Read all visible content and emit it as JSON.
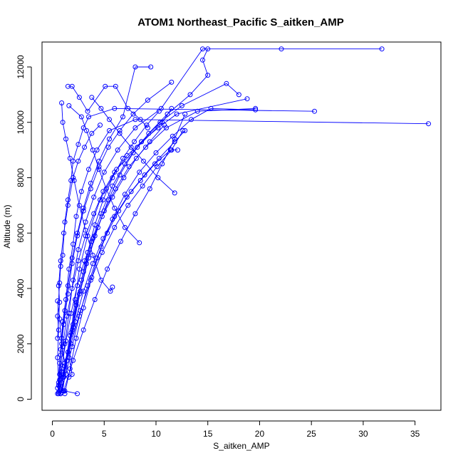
{
  "chart_data": {
    "type": "line",
    "title": "ATOM1 Northeast_Pacific S_aitken_AMP",
    "xlabel": "S_aitken_AMP",
    "ylabel": "Altitude (m)",
    "xlim": [
      -1,
      37.5
    ],
    "ylim": [
      -400,
      12900
    ],
    "x_ticks": [
      0,
      5,
      10,
      15,
      20,
      25,
      30,
      35
    ],
    "y_ticks": [
      0,
      2000,
      4000,
      6000,
      8000,
      10000,
      12000
    ],
    "x_tick_labels": [
      "0",
      "5",
      "10",
      "15",
      "20",
      "25",
      "30",
      "35"
    ],
    "y_tick_labels": [
      "0",
      "2000",
      "4000",
      "6000",
      "8000",
      "10000",
      "12000"
    ],
    "grid": false,
    "legend": "none",
    "series_color": "#0000ff",
    "marker": "open-circle",
    "profiles": [
      [
        [
          0.5,
          200
        ],
        [
          0.6,
          600
        ],
        [
          0.5,
          1500
        ],
        [
          0.6,
          2500
        ],
        [
          0.5,
          3000
        ],
        [
          0.7,
          4200
        ],
        [
          0.8,
          4800
        ],
        [
          1.0,
          5200
        ],
        [
          1.2,
          6400
        ],
        [
          1.5,
          7200
        ],
        [
          1.8,
          7900
        ],
        [
          2.0,
          8600
        ],
        [
          2.5,
          9200
        ],
        [
          3.0,
          9800
        ],
        [
          3.5,
          10200
        ],
        [
          6.0,
          10500
        ],
        [
          25.3,
          10400
        ]
      ],
      [
        [
          0.6,
          250
        ],
        [
          0.7,
          900
        ],
        [
          0.8,
          1800
        ],
        [
          1.0,
          2800
        ],
        [
          1.3,
          3600
        ],
        [
          1.6,
          4700
        ],
        [
          2.0,
          5600
        ],
        [
          2.3,
          6600
        ],
        [
          2.8,
          7500
        ],
        [
          3.5,
          8300
        ],
        [
          4.3,
          9000
        ],
        [
          5.5,
          9700
        ],
        [
          8.0,
          10100
        ],
        [
          36.3,
          9950
        ]
      ],
      [
        [
          0.7,
          300
        ],
        [
          0.9,
          1000
        ],
        [
          1.2,
          2000
        ],
        [
          1.6,
          3100
        ],
        [
          2.0,
          4300
        ],
        [
          2.5,
          5400
        ],
        [
          3.2,
          6400
        ],
        [
          4.0,
          7300
        ],
        [
          5.0,
          8200
        ],
        [
          6.3,
          9000
        ],
        [
          8.0,
          9800
        ],
        [
          10.5,
          10500
        ],
        [
          14.5,
          12650
        ],
        [
          22.1,
          12650
        ],
        [
          31.8,
          12650
        ]
      ],
      [
        [
          0.8,
          200
        ],
        [
          1.1,
          800
        ],
        [
          1.5,
          1700
        ],
        [
          2.0,
          2700
        ],
        [
          2.6,
          3800
        ],
        [
          3.3,
          4900
        ],
        [
          4.1,
          5900
        ],
        [
          5.0,
          6800
        ],
        [
          6.1,
          7600
        ],
        [
          7.4,
          8400
        ],
        [
          9.0,
          9100
        ],
        [
          11.0,
          9800
        ],
        [
          14.0,
          10400
        ],
        [
          19.6,
          10500
        ]
      ],
      [
        [
          0.9,
          250
        ],
        [
          1.2,
          1200
        ],
        [
          1.7,
          2300
        ],
        [
          2.3,
          3500
        ],
        [
          3.0,
          4600
        ],
        [
          3.8,
          5700
        ],
        [
          4.7,
          6700
        ],
        [
          5.8,
          7700
        ],
        [
          7.0,
          8500
        ],
        [
          8.6,
          9300
        ],
        [
          10.4,
          10000
        ],
        [
          12.5,
          10600
        ],
        [
          16.8,
          11400
        ],
        [
          18.0,
          11000
        ]
      ],
      [
        [
          0.5,
          400
        ],
        [
          0.7,
          1300
        ],
        [
          0.9,
          2200
        ],
        [
          1.2,
          3200
        ],
        [
          1.5,
          4100
        ],
        [
          1.9,
          5100
        ],
        [
          2.4,
          6000
        ],
        [
          3.0,
          6900
        ],
        [
          3.7,
          7800
        ],
        [
          4.5,
          8600
        ],
        [
          5.5,
          9400
        ],
        [
          6.8,
          10200
        ],
        [
          8.0,
          12000
        ],
        [
          9.5,
          12000
        ]
      ],
      [
        [
          1.0,
          300
        ],
        [
          1.4,
          1400
        ],
        [
          2.0,
          2600
        ],
        [
          2.7,
          3900
        ],
        [
          3.5,
          5100
        ],
        [
          4.4,
          6200
        ],
        [
          5.4,
          7200
        ],
        [
          6.5,
          8100
        ],
        [
          7.8,
          8900
        ],
        [
          9.3,
          9600
        ],
        [
          11.1,
          10300
        ],
        [
          13.3,
          11000
        ],
        [
          15.0,
          11700
        ],
        [
          14.5,
          12250
        ],
        [
          15.0,
          12650
        ]
      ],
      [
        [
          0.6,
          500
        ],
        [
          0.8,
          1600
        ],
        [
          1.1,
          2700
        ],
        [
          1.5,
          3800
        ],
        [
          1.9,
          4900
        ],
        [
          2.4,
          5900
        ],
        [
          3.0,
          6800
        ],
        [
          3.7,
          7600
        ],
        [
          4.5,
          8400
        ],
        [
          5.4,
          9100
        ],
        [
          6.5,
          9700
        ],
        [
          7.8,
          10300
        ],
        [
          9.2,
          10800
        ],
        [
          11.5,
          11450
        ]
      ],
      [
        [
          1.2,
          200
        ],
        [
          1.7,
          1100
        ],
        [
          2.3,
          2200
        ],
        [
          3.0,
          3300
        ],
        [
          3.8,
          4400
        ],
        [
          4.7,
          5500
        ],
        [
          5.8,
          6500
        ],
        [
          7.0,
          7400
        ],
        [
          8.4,
          8200
        ],
        [
          10.0,
          8900
        ],
        [
          11.6,
          9500
        ],
        [
          13.4,
          10100
        ],
        [
          15.3,
          10500
        ],
        [
          19.6,
          10450
        ]
      ],
      [
        [
          0.7,
          700
        ],
        [
          1.0,
          1900
        ],
        [
          1.4,
          3000
        ],
        [
          1.9,
          4000
        ],
        [
          2.5,
          5000
        ],
        [
          3.2,
          5900
        ],
        [
          4.0,
          6700
        ],
        [
          4.9,
          7500
        ],
        [
          6.0,
          8200
        ],
        [
          7.2,
          8800
        ],
        [
          8.6,
          9300
        ],
        [
          10.2,
          9800
        ],
        [
          12.0,
          10300
        ],
        [
          18.8,
          10850
        ]
      ],
      [
        [
          0.8,
          200
        ],
        [
          1.3,
          900
        ],
        [
          1.9,
          1900
        ],
        [
          2.6,
          3000
        ],
        [
          3.4,
          4100
        ],
        [
          4.3,
          5100
        ],
        [
          5.3,
          6000
        ],
        [
          6.4,
          6800
        ],
        [
          7.6,
          7500
        ],
        [
          8.9,
          8100
        ],
        [
          10.3,
          8700
        ],
        [
          11.8,
          9300
        ],
        [
          12.8,
          9700
        ]
      ],
      [
        [
          0.9,
          600
        ],
        [
          1.5,
          1700
        ],
        [
          2.2,
          2800
        ],
        [
          3.0,
          3900
        ],
        [
          3.9,
          4900
        ],
        [
          4.9,
          5800
        ],
        [
          6.0,
          6600
        ],
        [
          7.2,
          7300
        ],
        [
          8.5,
          7900
        ],
        [
          9.9,
          8500
        ],
        [
          11.4,
          9000
        ],
        [
          12.1,
          9000
        ]
      ],
      [
        [
          1.0,
          800
        ],
        [
          1.8,
          2000
        ],
        [
          2.7,
          3200
        ],
        [
          3.7,
          4300
        ],
        [
          4.8,
          5300
        ],
        [
          6.0,
          6200
        ],
        [
          7.3,
          7000
        ],
        [
          8.7,
          7700
        ],
        [
          10.1,
          8400
        ],
        [
          11.5,
          9000
        ],
        [
          12.6,
          9700
        ]
      ],
      [
        [
          1.1,
          300
        ],
        [
          2.0,
          1400
        ],
        [
          3.0,
          2500
        ],
        [
          4.1,
          3600
        ],
        [
          5.3,
          4700
        ],
        [
          6.6,
          5700
        ],
        [
          8.0,
          6700
        ],
        [
          9.4,
          7600
        ],
        [
          10.6,
          8500
        ],
        [
          11.8,
          9400
        ],
        [
          12.8,
          10300
        ]
      ],
      [
        [
          0.6,
          200
        ],
        [
          0.9,
          1100
        ],
        [
          1.3,
          2100
        ],
        [
          1.8,
          3100
        ],
        [
          2.4,
          4100
        ],
        [
          3.1,
          5000
        ],
        [
          3.9,
          5800
        ],
        [
          4.8,
          6600
        ],
        [
          5.8,
          7300
        ],
        [
          6.9,
          8000
        ],
        [
          8.1,
          8700
        ],
        [
          9.4,
          9300
        ],
        [
          10.8,
          9900
        ]
      ],
      [
        [
          2.4,
          200
        ],
        [
          1.2,
          300
        ],
        [
          0.8,
          350
        ],
        [
          1.0,
          900
        ],
        [
          1.8,
          2400
        ],
        [
          2.2,
          3600
        ],
        [
          2.6,
          4700
        ],
        [
          3.4,
          5900
        ],
        [
          4.6,
          7200
        ],
        [
          6.2,
          8300
        ],
        [
          8.2,
          9100
        ],
        [
          10.6,
          10000
        ],
        [
          11.5,
          10500
        ]
      ],
      [
        [
          5.8,
          4050
        ],
        [
          5.6,
          3900
        ],
        [
          4.7,
          4300
        ],
        [
          3.9,
          5200
        ],
        [
          3.2,
          6100
        ],
        [
          2.6,
          7000
        ],
        [
          2.1,
          7900
        ],
        [
          1.7,
          8700
        ],
        [
          1.3,
          9400
        ],
        [
          1.0,
          10000
        ],
        [
          0.9,
          10700
        ]
      ],
      [
        [
          8.4,
          5650
        ],
        [
          7.0,
          6200
        ],
        [
          6.0,
          6900
        ],
        [
          5.2,
          7600
        ],
        [
          4.5,
          8300
        ],
        [
          3.9,
          9000
        ],
        [
          3.3,
          9700
        ],
        [
          2.8,
          10200
        ],
        [
          1.6,
          10600
        ]
      ],
      [
        [
          11.8,
          7450
        ],
        [
          10.2,
          8000
        ],
        [
          8.8,
          8600
        ],
        [
          7.6,
          9100
        ],
        [
          6.5,
          9600
        ],
        [
          5.5,
          10100
        ],
        [
          4.7,
          10500
        ],
        [
          3.8,
          10900
        ]
      ],
      [
        [
          0.5,
          2200
        ],
        [
          0.7,
          3500
        ],
        [
          0.6,
          4100
        ],
        [
          0.8,
          5000
        ],
        [
          1.1,
          6000
        ],
        [
          1.5,
          7000
        ],
        [
          2.0,
          8000
        ],
        [
          2.5,
          8600
        ],
        [
          3.1,
          9100
        ],
        [
          3.8,
          9600
        ],
        [
          4.6,
          9900
        ]
      ],
      [
        [
          1.5,
          11300
        ],
        [
          1.9,
          11300
        ],
        [
          2.6,
          10900
        ],
        [
          3.4,
          10400
        ],
        [
          5.1,
          11300
        ],
        [
          6.1,
          11300
        ],
        [
          7.3,
          10500
        ],
        [
          8.5,
          10100
        ],
        [
          9.2,
          9800
        ]
      ],
      [
        [
          0.5,
          3550
        ],
        [
          0.7,
          2900
        ],
        [
          0.9,
          2000
        ],
        [
          1.2,
          1300
        ],
        [
          1.6,
          800
        ],
        [
          1.9,
          900
        ],
        [
          1.6,
          1500
        ],
        [
          1.9,
          2500
        ],
        [
          2.3,
          3400
        ],
        [
          2.8,
          4300
        ],
        [
          3.4,
          5300
        ],
        [
          4.1,
          6300
        ],
        [
          4.9,
          7200
        ],
        [
          5.8,
          8000
        ],
        [
          6.8,
          8700
        ],
        [
          7.9,
          9300
        ],
        [
          9.1,
          9900
        ],
        [
          10.3,
          10400
        ]
      ]
    ]
  }
}
